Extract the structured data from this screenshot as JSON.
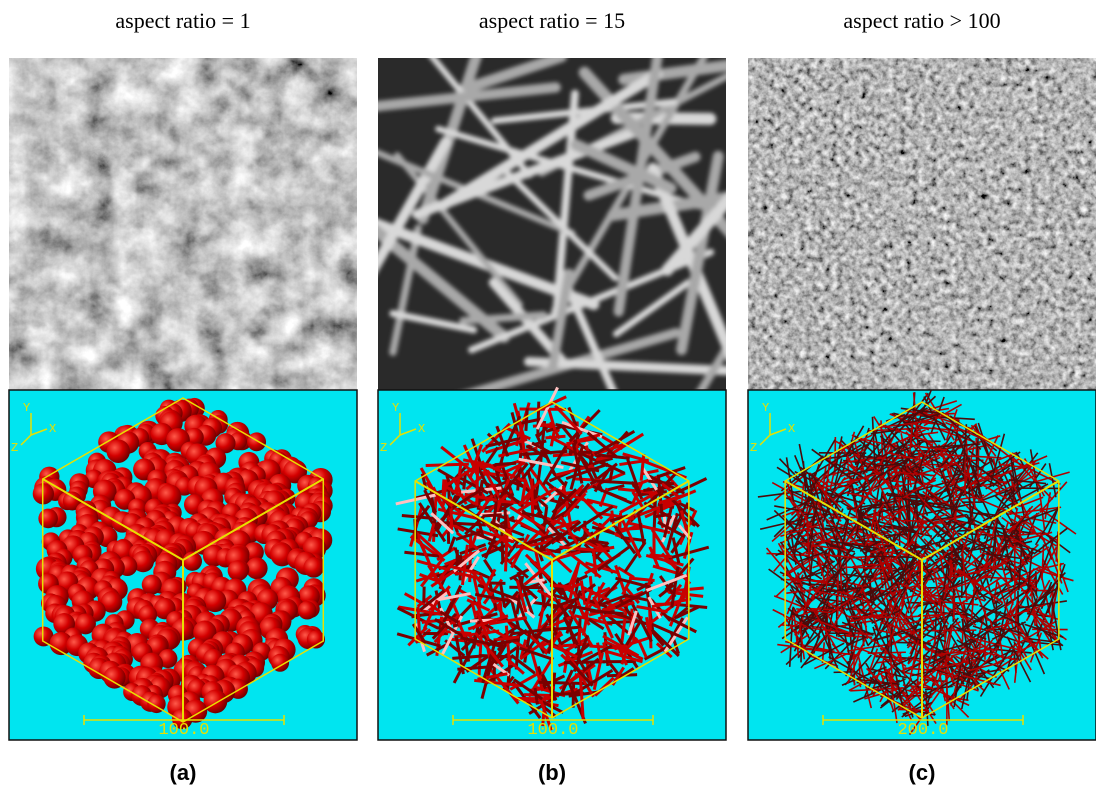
{
  "panels": [
    {
      "heading": "aspect ratio = 1",
      "scale_label": "100.0",
      "axis_labels": {
        "y": "Y",
        "x": "X",
        "z": "Z"
      },
      "caption": "(a)"
    },
    {
      "heading": "aspect ratio = 15",
      "scale_label": "100.0",
      "axis_labels": {
        "y": "Y",
        "x": "X",
        "z": "Z"
      },
      "caption": "(b)"
    },
    {
      "heading": "aspect ratio > 100",
      "scale_label": "200.0",
      "axis_labels": {
        "y": "Y",
        "x": "X",
        "z": "Z"
      },
      "caption": "(c)"
    }
  ]
}
